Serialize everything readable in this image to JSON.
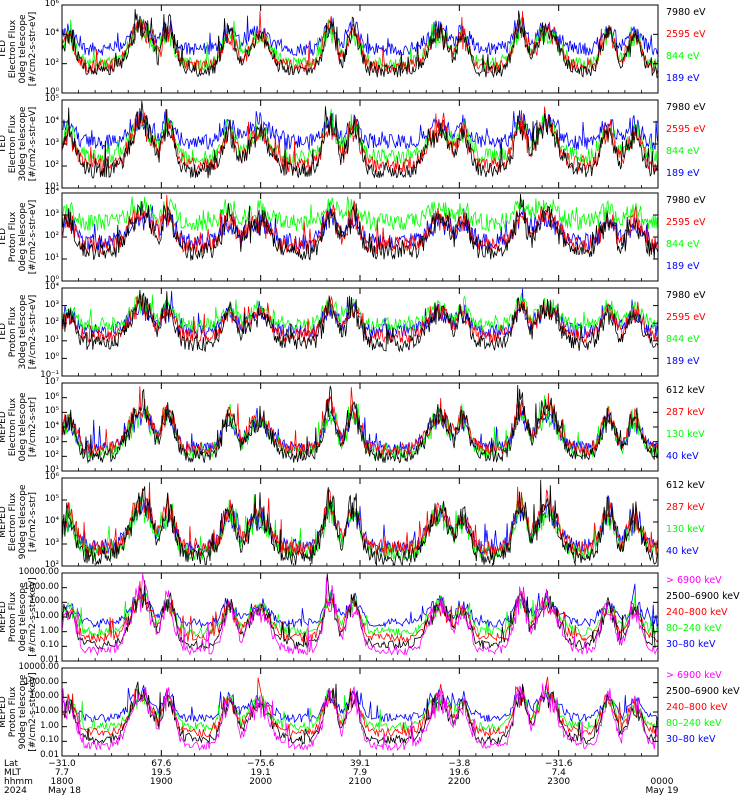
{
  "colors": {
    "black": "#000000",
    "red": "#ff0000",
    "green": "#00ff00",
    "blue": "#0000ff",
    "magenta": "#ff00ff"
  },
  "panels": [
    {
      "ylabel": [
        "TED",
        "Electron Flux",
        "0deg telescope",
        "[#/cm2-s-str-eV]"
      ],
      "yticks": [
        "10⁶",
        "10⁴",
        "10²",
        "10⁰"
      ],
      "ylog": [
        0,
        6
      ],
      "legend": [
        {
          "text": "7980 eV",
          "color": "black"
        },
        {
          "text": "2595 eV",
          "color": "red"
        },
        {
          "text": "844 eV",
          "color": "green"
        },
        {
          "text": "189 eV",
          "color": "blue"
        }
      ]
    },
    {
      "ylabel": [
        "TED",
        "Electron Flux",
        "30deg telescope",
        "[#/cm2-s-str-eV]"
      ],
      "yticks": [
        "10⁵",
        "10⁴",
        "10³",
        "10²",
        "10¹"
      ],
      "ylog": [
        1,
        6
      ],
      "legend": [
        {
          "text": "7980 eV",
          "color": "black"
        },
        {
          "text": "2595 eV",
          "color": "red"
        },
        {
          "text": "844 eV",
          "color": "green"
        },
        {
          "text": "189 eV",
          "color": "blue"
        }
      ]
    },
    {
      "ylabel": [
        "TED",
        "Proton Flux",
        "0deg telescope",
        "[#/cm2-s-str-eV]"
      ],
      "yticks": [
        "10⁴",
        "10³",
        "10²",
        "10¹",
        "10⁰"
      ],
      "ylog": [
        0,
        4.5
      ],
      "legend": [
        {
          "text": "7980 eV",
          "color": "black"
        },
        {
          "text": "2595 eV",
          "color": "red"
        },
        {
          "text": "844 eV",
          "color": "green"
        },
        {
          "text": "189 eV",
          "color": "blue"
        }
      ]
    },
    {
      "ylabel": [
        "TED",
        "Proton Flux",
        "30deg telescope",
        "[#/cm2-s-str-eV]"
      ],
      "yticks": [
        "10⁴",
        "10³",
        "10²",
        "10¹",
        "10⁰",
        "10⁻¹"
      ],
      "ylog": [
        -1,
        4.5
      ],
      "legend": [
        {
          "text": "7980 eV",
          "color": "black"
        },
        {
          "text": "2595 eV",
          "color": "red"
        },
        {
          "text": "844 eV",
          "color": "green"
        },
        {
          "text": "189 eV",
          "color": "blue"
        }
      ]
    },
    {
      "ylabel": [
        "MEPED",
        "Electron Flux",
        "0deg telescope",
        "[#/cm2-s-str]"
      ],
      "yticks": [
        "10⁷",
        "10⁶",
        "10⁵",
        "10⁴",
        "10³",
        "10²",
        "10¹"
      ],
      "ylog": [
        1,
        7
      ],
      "legend": [
        {
          "text": "612 keV",
          "color": "black"
        },
        {
          "text": "287 keV",
          "color": "red"
        },
        {
          "text": "130 keV",
          "color": "green"
        },
        {
          "text": "40 keV",
          "color": "blue"
        }
      ]
    },
    {
      "ylabel": [
        "MEPED",
        "Electron Flux",
        "90deg telescope",
        "[#/cm2-s-str]"
      ],
      "yticks": [
        "10⁶",
        "10⁵",
        "10⁴",
        "10³",
        "10²"
      ],
      "ylog": [
        1.5,
        6.5
      ],
      "legend": [
        {
          "text": "612 keV",
          "color": "black"
        },
        {
          "text": "287 keV",
          "color": "red"
        },
        {
          "text": "130 keV",
          "color": "green"
        },
        {
          "text": "40 keV",
          "color": "blue"
        }
      ]
    },
    {
      "ylabel": [
        "MEPED",
        "Proton Flux",
        "0deg telescope",
        "[#/cm2-s-str-keV]"
      ],
      "yticks": [
        "10000.00",
        "1000.00",
        "100.00",
        "10.00",
        "1.00",
        "0.10",
        "0.01"
      ],
      "ylog": [
        -2,
        4
      ],
      "legend": [
        {
          "text": "> 6900 keV",
          "color": "magenta"
        },
        {
          "text": "2500–6900 keV",
          "color": "black"
        },
        {
          "text": "240–800 keV",
          "color": "red"
        },
        {
          "text": "80–240 keV",
          "color": "green"
        },
        {
          "text": "30–80 keV",
          "color": "blue"
        }
      ]
    },
    {
      "ylabel": [
        "MEPED",
        "Proton Flux",
        "90deg telescope",
        "[#/cm2-s-str-keV]"
      ],
      "yticks": [
        "10000.00",
        "1000.00",
        "100.00",
        "10.00",
        "1.00",
        "0.10",
        "0.01"
      ],
      "ylog": [
        -2,
        4
      ],
      "legend": [
        {
          "text": "> 6900 keV",
          "color": "magenta"
        },
        {
          "text": "2500–6900 keV",
          "color": "black"
        },
        {
          "text": "240–800 keV",
          "color": "red"
        },
        {
          "text": "80–240 keV",
          "color": "green"
        },
        {
          "text": "30–80 keV",
          "color": "blue"
        }
      ]
    }
  ],
  "xaxis": {
    "row_labels": [
      "Lat",
      "MLT",
      "hhmm",
      "2024"
    ],
    "columns": [
      {
        "lat": "−31.0",
        "mlt": "7.7",
        "hhmm": "1800",
        "date": "May 18"
      },
      {
        "lat": "67.6",
        "mlt": "19.5",
        "hhmm": "1900",
        "date": ""
      },
      {
        "lat": "−75.6",
        "mlt": "19.1",
        "hhmm": "2000",
        "date": ""
      },
      {
        "lat": "39.1",
        "mlt": "7.9",
        "hhmm": "2100",
        "date": ""
      },
      {
        "lat": "−3.8",
        "mlt": "19.6",
        "hhmm": "2200",
        "date": ""
      },
      {
        "lat": "−31.6",
        "mlt": "7.4",
        "hhmm": "2300",
        "date": ""
      },
      {
        "lat": "",
        "mlt": "",
        "hhmm": "0000",
        "date": "May 19"
      }
    ]
  },
  "chart_data": {
    "type": "line",
    "title": "",
    "xlabel": "hhmm",
    "x_range": [
      "1800",
      "0000"
    ],
    "pass_centers_hhmm": [
      "1804",
      "1848",
      "1904",
      "1941",
      "1959",
      "2042",
      "2056",
      "2148",
      "2202",
      "2237",
      "2253",
      "2330",
      "2346"
    ],
    "panels": [
      {
        "name": "TED Electron Flux 0deg telescope",
        "ylog": [
          0,
          6
        ],
        "series": [
          {
            "name": "7980 eV",
            "background": 1.5
          },
          {
            "name": "2595 eV",
            "background": 1.8
          },
          {
            "name": "844 eV",
            "background": 2.0
          },
          {
            "name": "189 eV",
            "background": 3.0
          }
        ]
      },
      {
        "name": "TED Electron Flux 30deg telescope",
        "ylog": [
          1,
          6
        ],
        "series": [
          {
            "name": "7980 eV",
            "background": 2.0
          },
          {
            "name": "2595 eV",
            "background": 2.3
          },
          {
            "name": "844 eV",
            "background": 2.8
          },
          {
            "name": "189 eV",
            "background": 3.6
          }
        ]
      },
      {
        "name": "TED Proton Flux 0deg telescope",
        "ylog": [
          0,
          4.5
        ],
        "series": [
          {
            "name": "7980 eV",
            "background": 1.5
          },
          {
            "name": "2595 eV",
            "background": 1.8
          },
          {
            "name": "844 eV",
            "background": 3.0
          },
          {
            "name": "189 eV",
            "background": 2.0
          }
        ]
      },
      {
        "name": "TED Proton Flux 30deg telescope",
        "ylog": [
          -1,
          4.5
        ],
        "series": [
          {
            "name": "7980 eV",
            "background": 1.0
          },
          {
            "name": "2595 eV",
            "background": 1.5
          },
          {
            "name": "844 eV",
            "background": 2.2
          },
          {
            "name": "189 eV",
            "background": 1.8
          }
        ]
      },
      {
        "name": "MEPED Electron Flux 0deg telescope",
        "ylog": [
          1,
          7
        ],
        "series": [
          {
            "name": "612 keV",
            "background": 2.0
          },
          {
            "name": "287 keV",
            "background": 2.5
          },
          {
            "name": "130 keV",
            "background": 2.3
          },
          {
            "name": "40 keV",
            "background": 2.6
          }
        ]
      },
      {
        "name": "MEPED Electron Flux 90deg telescope",
        "ylog": [
          1.5,
          6.5
        ],
        "series": [
          {
            "name": "612 keV",
            "background": 2.0
          },
          {
            "name": "287 keV",
            "background": 2.5
          },
          {
            "name": "130 keV",
            "background": 2.3
          },
          {
            "name": "40 keV",
            "background": 2.6
          }
        ]
      },
      {
        "name": "MEPED Proton Flux 0deg telescope",
        "ylog": [
          -2,
          4
        ],
        "series": [
          {
            "name": "> 6900 keV",
            "background": -1.3
          },
          {
            "name": "2500–6900 keV",
            "background": -0.9
          },
          {
            "name": "240–800 keV",
            "background": -0.4
          },
          {
            "name": "80–240 keV",
            "background": 0.0
          },
          {
            "name": "30–80 keV",
            "background": 0.6
          }
        ]
      },
      {
        "name": "MEPED Proton Flux 90deg telescope",
        "ylog": [
          -2,
          4
        ],
        "series": [
          {
            "name": "> 6900 keV",
            "background": -1.3
          },
          {
            "name": "2500–6900 keV",
            "background": -0.9
          },
          {
            "name": "240–800 keV",
            "background": -0.4
          },
          {
            "name": "80–240 keV",
            "background": 0.0
          },
          {
            "name": "30–80 keV",
            "background": 0.6
          }
        ]
      }
    ]
  }
}
